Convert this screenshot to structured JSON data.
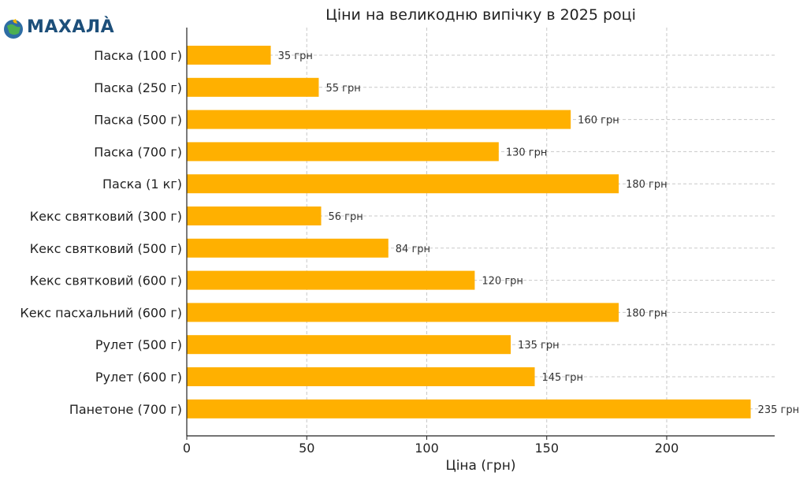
{
  "logo": {
    "text": "МАХАЛÀ"
  },
  "chart_data": {
    "type": "bar",
    "orientation": "horizontal",
    "title": "Ціни на великодню випічку в 2025 році",
    "xlabel": "Ціна (грн)",
    "ylabel": "",
    "xlim": [
      0,
      245
    ],
    "xticks": [
      0,
      50,
      100,
      150,
      200
    ],
    "grid": true,
    "bar_color": "#ffb000",
    "value_suffix": " грн",
    "categories": [
      "Паска (100 г)",
      "Паска (250 г)",
      "Паска (500 г)",
      "Паска (700 г)",
      "Паска (1 кг)",
      "Кекс святковий (300 г)",
      "Кекс святковий (500 г)",
      "Кекс святковий (600 г)",
      "Кекс пасхальний (600 г)",
      "Рулет (500 г)",
      "Рулет (600 г)",
      "Панетоне (700 г)"
    ],
    "values": [
      35,
      55,
      160,
      130,
      180,
      56,
      84,
      120,
      180,
      135,
      145,
      235
    ]
  }
}
